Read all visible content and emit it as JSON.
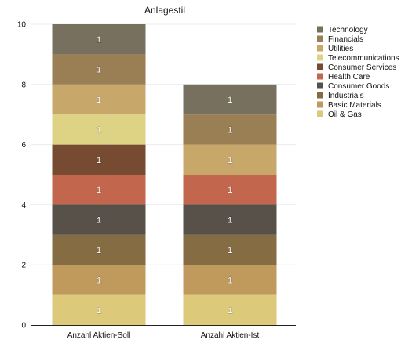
{
  "chart_data": {
    "type": "bar",
    "stacked": true,
    "title": "Anlagestil",
    "xlabel": "",
    "ylabel": "",
    "ylim": [
      0,
      10
    ],
    "yticks": [
      0,
      2,
      4,
      6,
      8,
      10
    ],
    "grid": true,
    "legend_position": "right",
    "categories": [
      "Anzahl Aktien-Soll",
      "Anzahl Aktien-Ist"
    ],
    "series": [
      {
        "name": "Oil & Gas",
        "color": "#dcc979",
        "values": [
          1,
          1
        ]
      },
      {
        "name": "Basic Materials",
        "color": "#c09a5c",
        "values": [
          1,
          1
        ]
      },
      {
        "name": "Industrials",
        "color": "#866c43",
        "values": [
          1,
          1
        ]
      },
      {
        "name": "Consumer Goods",
        "color": "#57514a",
        "values": [
          1,
          1
        ]
      },
      {
        "name": "Health Care",
        "color": "#c2674d",
        "values": [
          1,
          1
        ]
      },
      {
        "name": "Consumer Services",
        "color": "#774b32",
        "values": [
          1,
          0
        ]
      },
      {
        "name": "Telecommunications",
        "color": "#ded385",
        "values": [
          1,
          0
        ]
      },
      {
        "name": "Utilities",
        "color": "#c8a76b",
        "values": [
          1,
          1
        ]
      },
      {
        "name": "Financials",
        "color": "#9a7e54",
        "values": [
          1,
          1
        ]
      },
      {
        "name": "Technology",
        "color": "#77705f",
        "values": [
          1,
          1
        ]
      }
    ]
  }
}
